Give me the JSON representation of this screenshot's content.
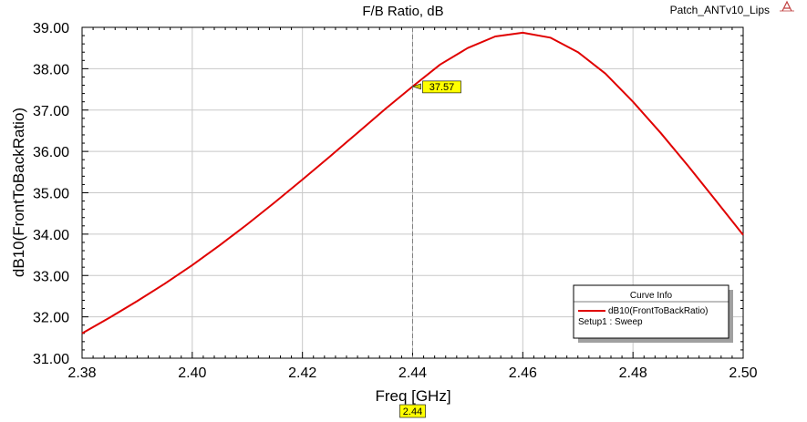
{
  "project_name": "Patch_ANTv10_Lips",
  "colors": {
    "curve": "#e00000",
    "grid": "#c8c8c8",
    "marker_fill": "#ffff00",
    "marker_line": "#808080",
    "axis": "#000000"
  },
  "chart_data": {
    "type": "line",
    "title": "F/B Ratio, dB",
    "xlabel": "Freq [GHz]",
    "ylabel": "dB10(FrontToBackRatio)",
    "xlim": [
      2.38,
      2.5
    ],
    "ylim": [
      31.0,
      39.0
    ],
    "x_ticks": [
      "2.38",
      "2.40",
      "2.42",
      "2.44",
      "2.46",
      "2.48",
      "2.50"
    ],
    "y_ticks": [
      "31.00",
      "32.00",
      "33.00",
      "34.00",
      "35.00",
      "36.00",
      "37.00",
      "38.00",
      "39.00"
    ],
    "grid": true,
    "legend": {
      "placement": "bottom-right",
      "title": "Curve Info",
      "entries": [
        {
          "label": "dB10(FrontToBackRatio)",
          "sublabel": "Setup1 : Sweep"
        }
      ]
    },
    "series": [
      {
        "name": "dB10(FrontToBackRatio)",
        "x": [
          2.38,
          2.385,
          2.39,
          2.395,
          2.4,
          2.405,
          2.41,
          2.415,
          2.42,
          2.425,
          2.43,
          2.435,
          2.44,
          2.445,
          2.45,
          2.455,
          2.46,
          2.465,
          2.47,
          2.475,
          2.48,
          2.485,
          2.49,
          2.495,
          2.5
        ],
        "values": [
          31.6,
          31.98,
          32.38,
          32.8,
          33.25,
          33.73,
          34.24,
          34.77,
          35.32,
          35.88,
          36.45,
          37.02,
          37.57,
          38.1,
          38.5,
          38.78,
          38.87,
          38.75,
          38.4,
          37.88,
          37.2,
          36.45,
          35.65,
          34.82,
          33.98
        ]
      }
    ],
    "marker": {
      "x_value": 2.44,
      "y_value": 37.57,
      "y_label": "37.57",
      "x_label": "2.44"
    }
  }
}
